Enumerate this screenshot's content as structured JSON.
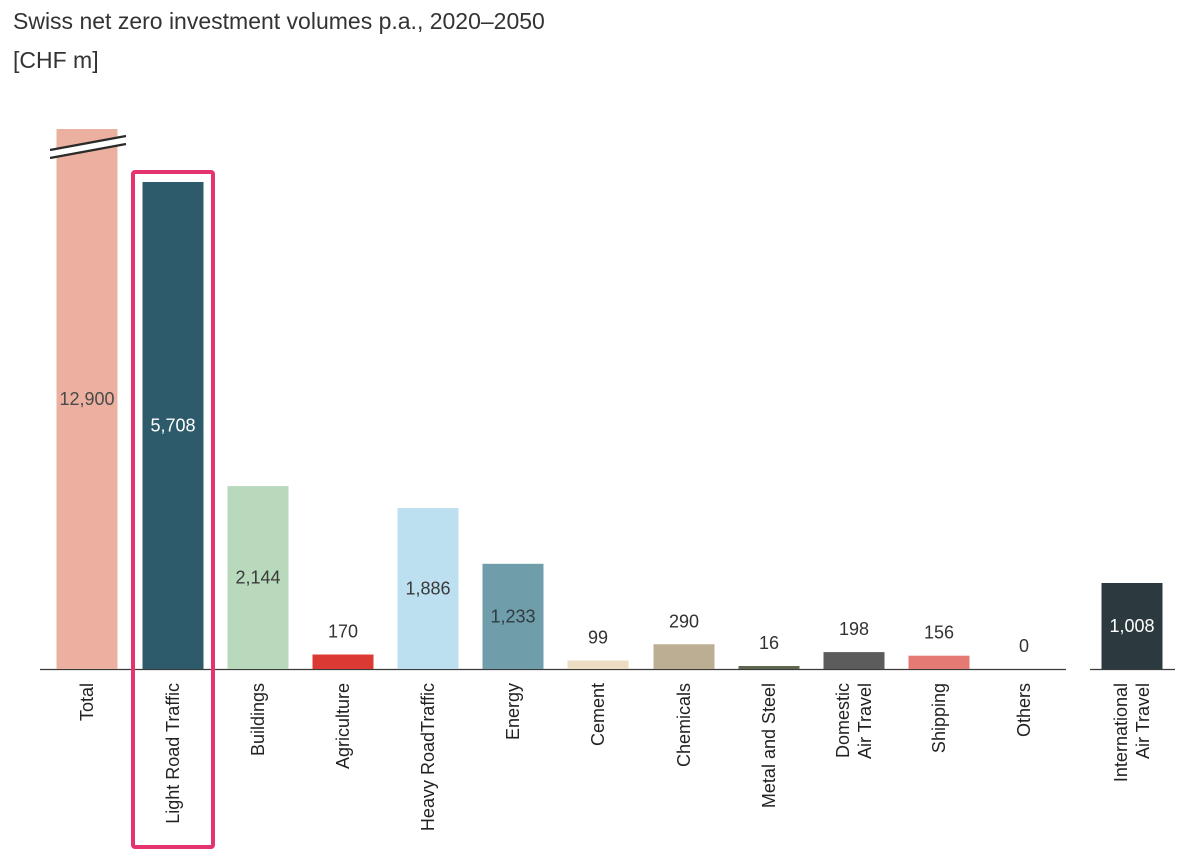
{
  "chart_data": {
    "type": "bar",
    "title": "Swiss net zero investment volumes p.a., 2020–2050",
    "subtitle": "[CHF m]",
    "categories": [
      "Total",
      "Light Road Traffic",
      "Buildings",
      "Agriculture",
      "Heavy RoadTraffic",
      "Energy",
      "Cement",
      "Chemicals",
      "Metal and Steel",
      "Domestic Air Travel",
      "Shipping",
      "Others",
      "International Air Travel"
    ],
    "category_lines": [
      [
        "Total"
      ],
      [
        "Light Road Traffic"
      ],
      [
        "Buildings"
      ],
      [
        "Agriculture"
      ],
      [
        "Heavy RoadTraffic"
      ],
      [
        "Energy"
      ],
      [
        "Cement"
      ],
      [
        "Chemicals"
      ],
      [
        "Metal and Steel"
      ],
      [
        "Domestic",
        "Air Travel"
      ],
      [
        "Shipping"
      ],
      [
        "Others"
      ],
      [
        "International",
        "Air Travel"
      ]
    ],
    "values": [
      12900,
      5708,
      2144,
      170,
      1886,
      1233,
      99,
      290,
      16,
      198,
      156,
      0,
      1008
    ],
    "value_labels": [
      "12,900",
      "5,708",
      "2,144",
      "170",
      "1,886",
      "1,233",
      "99",
      "290",
      "16",
      "198",
      "156",
      "0",
      "1,008"
    ],
    "colors": [
      "#ebb09f",
      "#2e5b6b",
      "#b8d9bc",
      "#db3a34",
      "#bde0f0",
      "#6f9daa",
      "#ecdcc2",
      "#bcae92",
      "#5e6650",
      "#5c5c5c",
      "#e57a74",
      "#ffffff",
      "#2c3a40"
    ],
    "label_inside": [
      true,
      true,
      true,
      false,
      true,
      true,
      false,
      false,
      false,
      false,
      false,
      false,
      true
    ],
    "label_colors": [
      "#4a4a4a",
      "#ffffff",
      "#3a3a3a",
      "#333333",
      "#3a3a3a",
      "#2f3b40",
      "#333333",
      "#333333",
      "#333333",
      "#333333",
      "#333333",
      "#333333",
      "#ffffff"
    ],
    "axis_break_on": "Total",
    "highlighted_category": "Light Road Traffic",
    "highlight_color": "#e5336e",
    "ylim": [
      0,
      5708
    ],
    "xlabel": "",
    "ylabel": ""
  }
}
